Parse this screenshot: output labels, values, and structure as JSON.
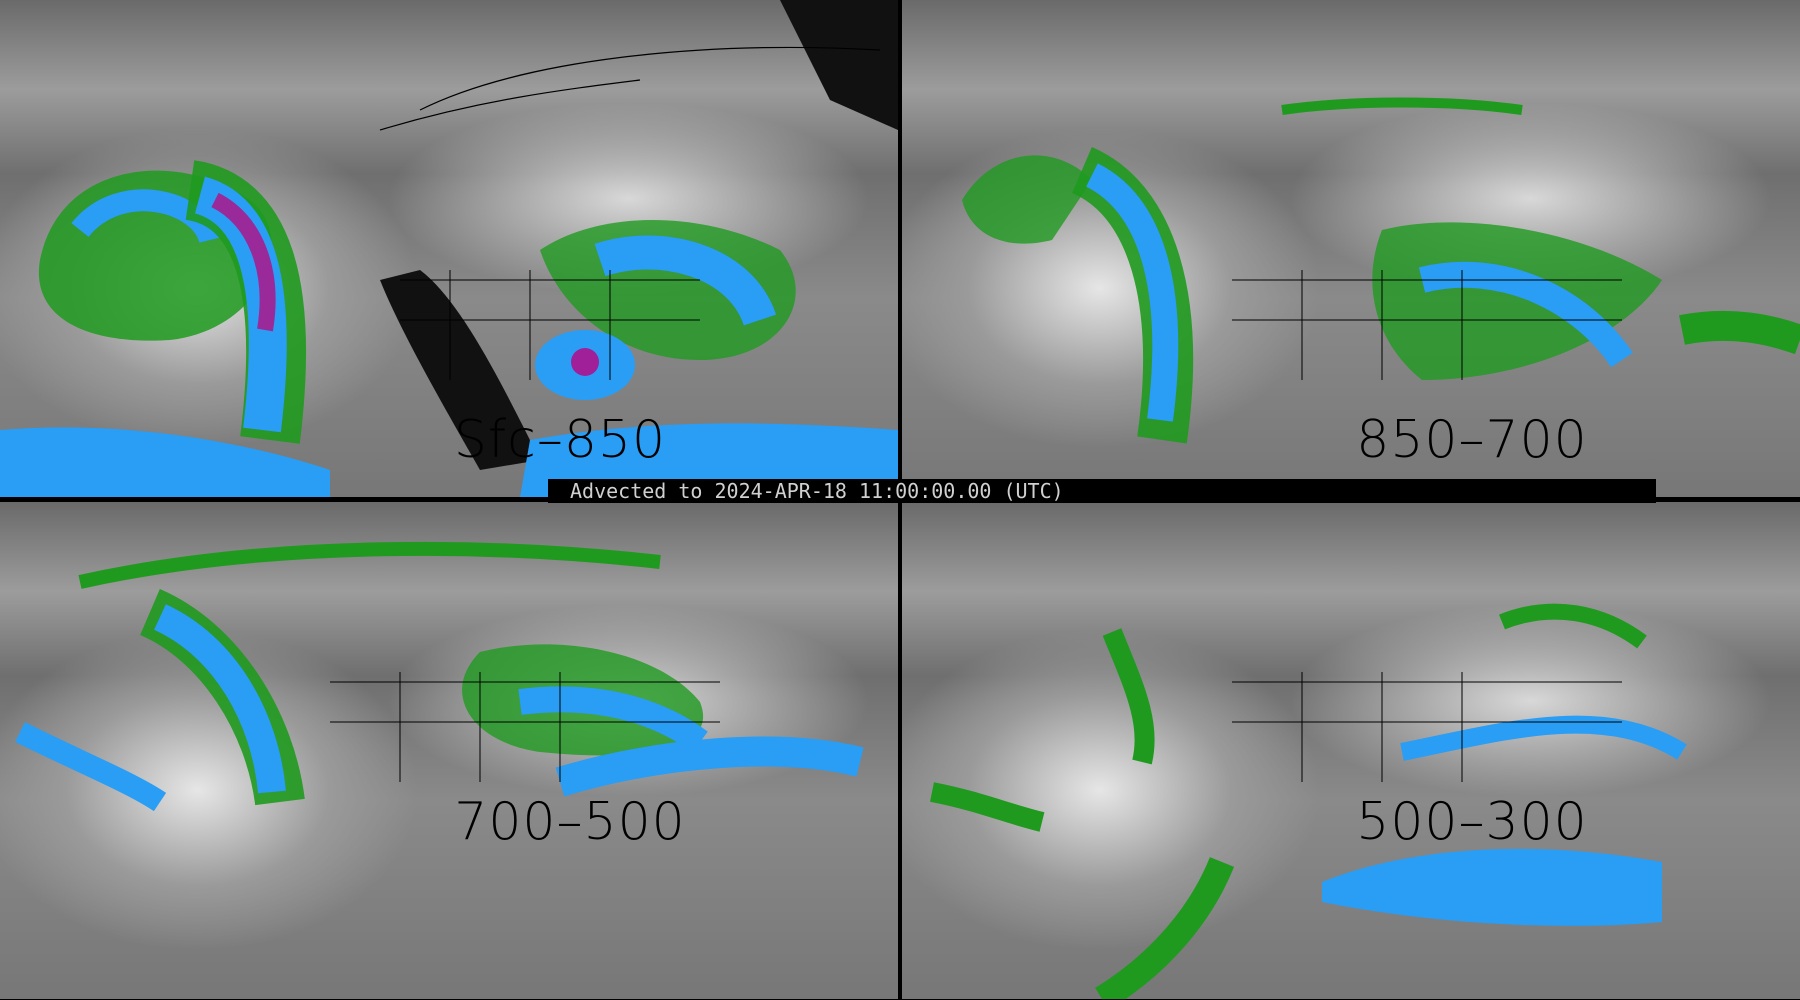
{
  "panels": [
    {
      "label": "Sfc–850"
    },
    {
      "label": "850–700"
    },
    {
      "label": "700–500"
    },
    {
      "label": "500–300"
    }
  ],
  "banner": {
    "text": "Advected to 2024-APR-18 11:00:00.00 (UTC)"
  },
  "colors": {
    "low": "#1f9a1f",
    "mid": "#1e90ff",
    "high": "#4a52d8",
    "max": "#a0209a",
    "background_gray": "#8a8a8a"
  }
}
